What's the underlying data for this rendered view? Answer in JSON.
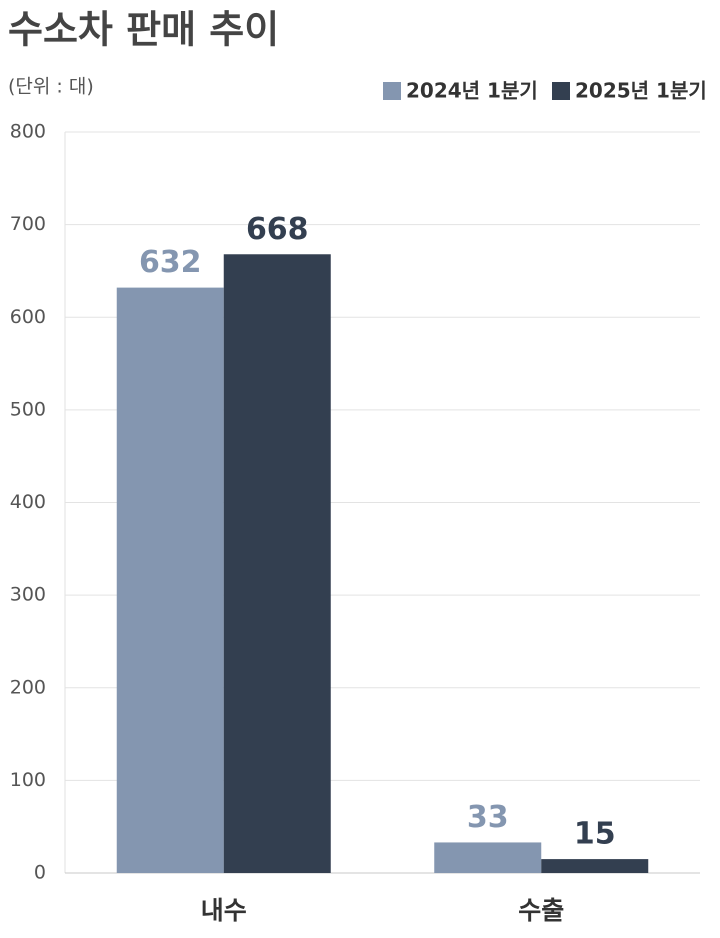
{
  "chart_data": {
    "type": "bar",
    "title": "수소차 판매 추이",
    "subtitle": "(단위 : 대)",
    "categories": [
      "내수",
      "수출"
    ],
    "series": [
      {
        "name": "2024년 1분기",
        "color": "#8496b0",
        "values": [
          632,
          33
        ]
      },
      {
        "name": "2025년 1분기",
        "color": "#333f50",
        "values": [
          668,
          15
        ]
      }
    ],
    "ylim": [
      0,
      800
    ],
    "yticks": [
      0,
      100,
      200,
      300,
      400,
      500,
      600,
      700,
      800
    ],
    "grid": true,
    "legend": "top-right"
  }
}
